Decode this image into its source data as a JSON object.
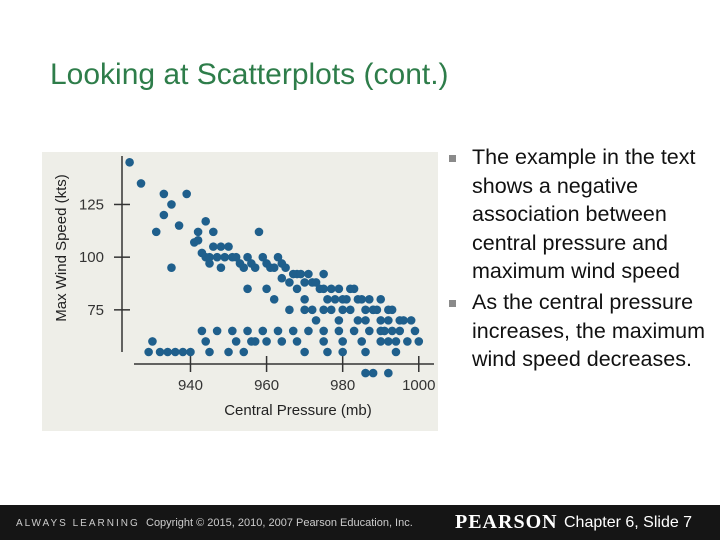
{
  "title": "Looking at Scatterplots (cont.)",
  "bullets": [
    "The example in the text shows a negative association between central pressure and maximum wind speed",
    "As the central pressure increases, the maximum wind speed decreases."
  ],
  "chart_data": {
    "type": "scatter",
    "xlabel": "Central Pressure (mb)",
    "ylabel": "Max Wind Speed (kts)",
    "x_ticks": [
      940,
      960,
      980,
      1000
    ],
    "y_ticks": [
      75,
      100,
      125
    ],
    "xlim": [
      922,
      1004
    ],
    "ylim": [
      55,
      148
    ],
    "point_color": "#1f5f8c",
    "series": [
      {
        "points": [
          [
            924,
            145
          ],
          [
            927,
            135
          ],
          [
            931,
            112
          ],
          [
            933,
            130
          ],
          [
            933,
            120
          ],
          [
            935,
            125
          ],
          [
            937,
            115
          ],
          [
            939,
            130
          ],
          [
            941,
            107
          ],
          [
            942,
            112
          ],
          [
            942,
            108
          ],
          [
            943,
            102
          ],
          [
            944,
            117
          ],
          [
            944,
            100
          ],
          [
            945,
            97
          ],
          [
            946,
            112
          ],
          [
            946,
            105
          ],
          [
            947,
            100
          ],
          [
            948,
            105
          ],
          [
            949,
            100
          ],
          [
            950,
            105
          ],
          [
            951,
            100
          ],
          [
            952,
            100
          ],
          [
            953,
            97
          ],
          [
            954,
            95
          ],
          [
            955,
            100
          ],
          [
            956,
            97
          ],
          [
            957,
            95
          ],
          [
            958,
            112
          ],
          [
            959,
            100
          ],
          [
            960,
            97
          ],
          [
            961,
            95
          ],
          [
            962,
            95
          ],
          [
            963,
            100
          ],
          [
            964,
            97
          ],
          [
            965,
            95
          ],
          [
            966,
            88
          ],
          [
            967,
            92
          ],
          [
            968,
            92
          ],
          [
            969,
            92
          ],
          [
            970,
            88
          ],
          [
            971,
            92
          ],
          [
            972,
            88
          ],
          [
            973,
            88
          ],
          [
            974,
            85
          ],
          [
            975,
            92
          ],
          [
            975,
            85
          ],
          [
            976,
            80
          ],
          [
            977,
            85
          ],
          [
            978,
            80
          ],
          [
            979,
            85
          ],
          [
            980,
            80
          ],
          [
            981,
            80
          ],
          [
            982,
            85
          ],
          [
            983,
            85
          ],
          [
            984,
            80
          ],
          [
            985,
            80
          ],
          [
            986,
            75
          ],
          [
            987,
            80
          ],
          [
            988,
            75
          ],
          [
            989,
            75
          ],
          [
            990,
            80
          ],
          [
            992,
            75
          ],
          [
            993,
            75
          ],
          [
            995,
            70
          ],
          [
            996,
            70
          ],
          [
            1000,
            60
          ],
          [
            930,
            60
          ],
          [
            945,
            100
          ],
          [
            935,
            95
          ],
          [
            948,
            95
          ],
          [
            955,
            85
          ],
          [
            960,
            85
          ],
          [
            962,
            80
          ],
          [
            964,
            90
          ],
          [
            968,
            85
          ],
          [
            970,
            80
          ],
          [
            972,
            75
          ],
          [
            973,
            70
          ],
          [
            975,
            75
          ],
          [
            977,
            75
          ],
          [
            979,
            70
          ],
          [
            980,
            75
          ],
          [
            982,
            75
          ],
          [
            984,
            70
          ],
          [
            986,
            70
          ],
          [
            988,
            75
          ],
          [
            990,
            70
          ],
          [
            990,
            65
          ],
          [
            992,
            70
          ],
          [
            993,
            65
          ],
          [
            994,
            60
          ],
          [
            997,
            60
          ],
          [
            998,
            70
          ],
          [
            985,
            60
          ],
          [
            980,
            60
          ],
          [
            970,
            75
          ],
          [
            966,
            75
          ],
          [
            957,
            60
          ],
          [
            944,
            60
          ],
          [
            952,
            60
          ],
          [
            975,
            60
          ],
          [
            988,
            45
          ],
          [
            992,
            45
          ],
          [
            986,
            45
          ],
          [
            992,
            60
          ],
          [
            990,
            60
          ],
          [
            994,
            55
          ],
          [
            986,
            55
          ],
          [
            980,
            55
          ],
          [
            976,
            55
          ],
          [
            970,
            55
          ],
          [
            968,
            60
          ],
          [
            964,
            60
          ],
          [
            960,
            60
          ],
          [
            956,
            60
          ],
          [
            954,
            55
          ],
          [
            950,
            55
          ],
          [
            945,
            55
          ],
          [
            940,
            55
          ],
          [
            938,
            55
          ],
          [
            936,
            55
          ],
          [
            934,
            55
          ],
          [
            932,
            55
          ],
          [
            929,
            55
          ],
          [
            943,
            65
          ],
          [
            947,
            65
          ],
          [
            951,
            65
          ],
          [
            955,
            65
          ],
          [
            959,
            65
          ],
          [
            963,
            65
          ],
          [
            967,
            65
          ],
          [
            971,
            65
          ],
          [
            975,
            65
          ],
          [
            979,
            65
          ],
          [
            983,
            65
          ],
          [
            987,
            65
          ],
          [
            991,
            65
          ],
          [
            995,
            65
          ],
          [
            999,
            65
          ]
        ]
      }
    ]
  },
  "footer": {
    "tagline": "ALWAYS LEARNING",
    "copyright": "Copyright © 2015, 2010, 2007 Pearson Education, Inc.",
    "logo": "PEARSON",
    "slide_label": "Chapter 6, Slide 7"
  }
}
